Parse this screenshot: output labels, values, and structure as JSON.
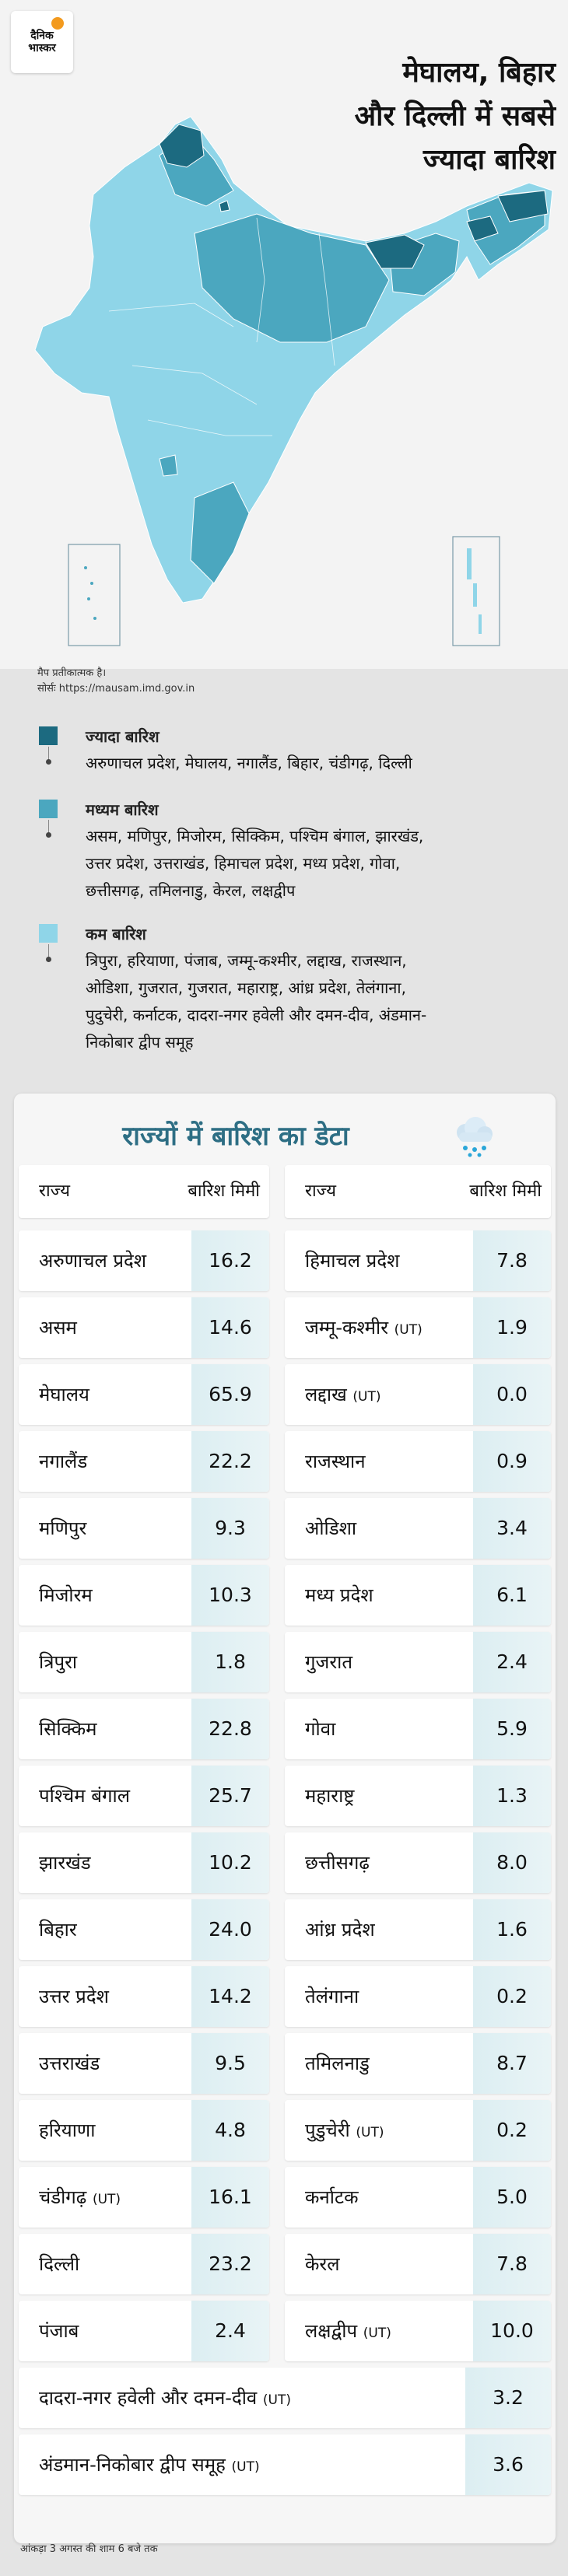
{
  "brand": {
    "line1": "दैनिक",
    "line2": "भास्कर"
  },
  "headline": [
    "मेघालय, बिहार",
    "और दिल्ली में सबसे",
    "ज्यादा बारिश"
  ],
  "map_note": [
    "मैप प्रतीकात्मक है।",
    "सोर्सः https://mausam.imd.gov.in"
  ],
  "colors": {
    "high": "#1c6a80",
    "medium": "#4ba7bf",
    "low": "#8fd5e8",
    "title": "#2d6e84",
    "value_bg": "#dceef2"
  },
  "legend": [
    {
      "title": "ज्यादा बारिश",
      "lines": [
        "अरुणाचल प्रदेश, मेघालय, नगालैंड, बिहार, चंडीगढ़, दिल्ली"
      ]
    },
    {
      "title": "मध्यम बारिश",
      "lines": [
        "असम, मणिपुर, मिजोरम, सिक्किम, पश्चिम बंगाल, झारखंड,",
        "उत्तर प्रदेश, उत्तराखंड, हिमाचल प्रदेश, मध्य प्रदेश, गोवा,",
        "छत्तीसगढ़, तमिलनाडु, केरल, लक्षद्वीप"
      ]
    },
    {
      "title": "कम बारिश",
      "lines": [
        "त्रिपुरा, हरियाणा, पंजाब, जम्मू-कश्मीर, लद्दाख, राजस्थान,",
        "ओडिशा, गुजरात, गुजरात, महाराष्ट्र, आंध्र प्रदेश, तेलंगाना,",
        "पुदुचेरी, कर्नाटक, दादरा-नगर हवेली और दमन-दीव, अंडमान-",
        "निकोबार द्वीप समूह"
      ]
    }
  ],
  "table": {
    "title": "राज्यों में बारिश का डेटा",
    "header": {
      "state": "राज्य",
      "rain": "बारिश मिमी"
    },
    "left": [
      {
        "name": "अरुणाचल प्रदेश",
        "ut": "",
        "value": "16.2"
      },
      {
        "name": "असम",
        "ut": "",
        "value": "14.6"
      },
      {
        "name": "मेघालय",
        "ut": "",
        "value": "65.9"
      },
      {
        "name": "नगालैंड",
        "ut": "",
        "value": "22.2"
      },
      {
        "name": "मणिपुर",
        "ut": "",
        "value": "9.3"
      },
      {
        "name": "मिजोरम",
        "ut": "",
        "value": "10.3"
      },
      {
        "name": "त्रिपुरा",
        "ut": "",
        "value": "1.8"
      },
      {
        "name": "सिक्किम",
        "ut": "",
        "value": "22.8"
      },
      {
        "name": "पश्चिम बंगाल",
        "ut": "",
        "value": "25.7"
      },
      {
        "name": "झारखंड",
        "ut": "",
        "value": "10.2"
      },
      {
        "name": "बिहार",
        "ut": "",
        "value": "24.0"
      },
      {
        "name": "उत्तर प्रदेश",
        "ut": "",
        "value": "14.2"
      },
      {
        "name": "उत्तराखंड",
        "ut": "",
        "value": "9.5"
      },
      {
        "name": "हरियाणा",
        "ut": "",
        "value": "4.8"
      },
      {
        "name": "चंडीगढ़",
        "ut": "(UT)",
        "value": "16.1"
      },
      {
        "name": "दिल्ली",
        "ut": "",
        "value": "23.2"
      },
      {
        "name": "पंजाब",
        "ut": "",
        "value": "2.4"
      }
    ],
    "right": [
      {
        "name": "हिमाचल प्रदेश",
        "ut": "",
        "value": "7.8"
      },
      {
        "name": "जम्मू-कश्मीर",
        "ut": "(UT)",
        "value": "1.9"
      },
      {
        "name": "लद्दाख",
        "ut": "(UT)",
        "value": "0.0"
      },
      {
        "name": "राजस्थान",
        "ut": "",
        "value": "0.9"
      },
      {
        "name": "ओडिशा",
        "ut": "",
        "value": "3.4"
      },
      {
        "name": "मध्य प्रदेश",
        "ut": "",
        "value": "6.1"
      },
      {
        "name": "गुजरात",
        "ut": "",
        "value": "2.4"
      },
      {
        "name": "गोवा",
        "ut": "",
        "value": "5.9"
      },
      {
        "name": "महाराष्ट्र",
        "ut": "",
        "value": "1.3"
      },
      {
        "name": "छत्तीसगढ़",
        "ut": "",
        "value": "8.0"
      },
      {
        "name": "आंध्र प्रदेश",
        "ut": "",
        "value": "1.6"
      },
      {
        "name": "तेलंगाना",
        "ut": "",
        "value": "0.2"
      },
      {
        "name": "तमिलनाडु",
        "ut": "",
        "value": "8.7"
      },
      {
        "name": "पुडुचेरी",
        "ut": "(UT)",
        "value": "0.2"
      },
      {
        "name": "कर्नाटक",
        "ut": "",
        "value": "5.0"
      },
      {
        "name": "केरल",
        "ut": "",
        "value": "7.8"
      },
      {
        "name": "लक्षद्वीप",
        "ut": "(UT)",
        "value": "10.0"
      }
    ],
    "wide": [
      {
        "name": "दादरा-नगर हवेली और दमन-दीव",
        "ut": "(UT)",
        "value": "3.2"
      },
      {
        "name": "अंडमान-निकोबार द्वीप समूह",
        "ut": "(UT)",
        "value": "3.6"
      }
    ]
  },
  "footnote": "आंकड़ा 3 अगस्त की शाम 6 बजे तक"
}
